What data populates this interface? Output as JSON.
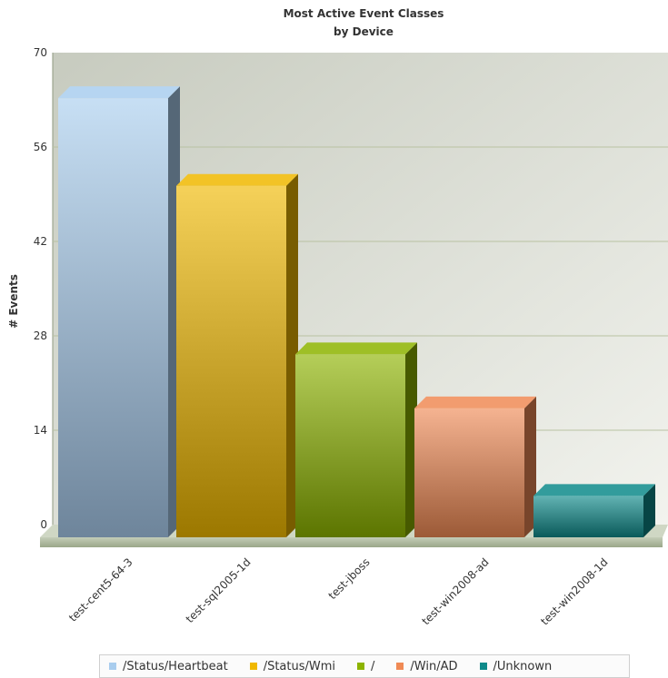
{
  "chart_data": {
    "type": "bar",
    "title": "Most Active Event Classes",
    "subtitle": "by Device",
    "xlabel": "",
    "ylabel": "# Events",
    "ylim": [
      0,
      70
    ],
    "yticks": [
      0,
      14,
      28,
      42,
      56,
      70
    ],
    "categories": [
      "test-cent5-64-3",
      "test-sql2005-1d",
      "test-jboss",
      "test-win2008-ad",
      "test-win2008-1d"
    ],
    "series": [
      {
        "name": "/Status/Heartbeat",
        "values": [
          65,
          null,
          null,
          null,
          null
        ],
        "color": "#a9cdee"
      },
      {
        "name": "/Status/Wmi",
        "values": [
          null,
          52,
          null,
          null,
          null
        ],
        "color": "#f0b800"
      },
      {
        "name": "/",
        "values": [
          null,
          null,
          27,
          null,
          null
        ],
        "color": "#8db400"
      },
      {
        "name": "/Win/AD",
        "values": [
          null,
          null,
          null,
          19,
          null
        ],
        "color": "#f08a55"
      },
      {
        "name": "/Unknown",
        "values": [
          null,
          null,
          null,
          null,
          6
        ],
        "color": "#0e8a8a"
      }
    ],
    "values": [
      65,
      52,
      27,
      19,
      6
    ],
    "grid": true,
    "legend": "bottom"
  }
}
